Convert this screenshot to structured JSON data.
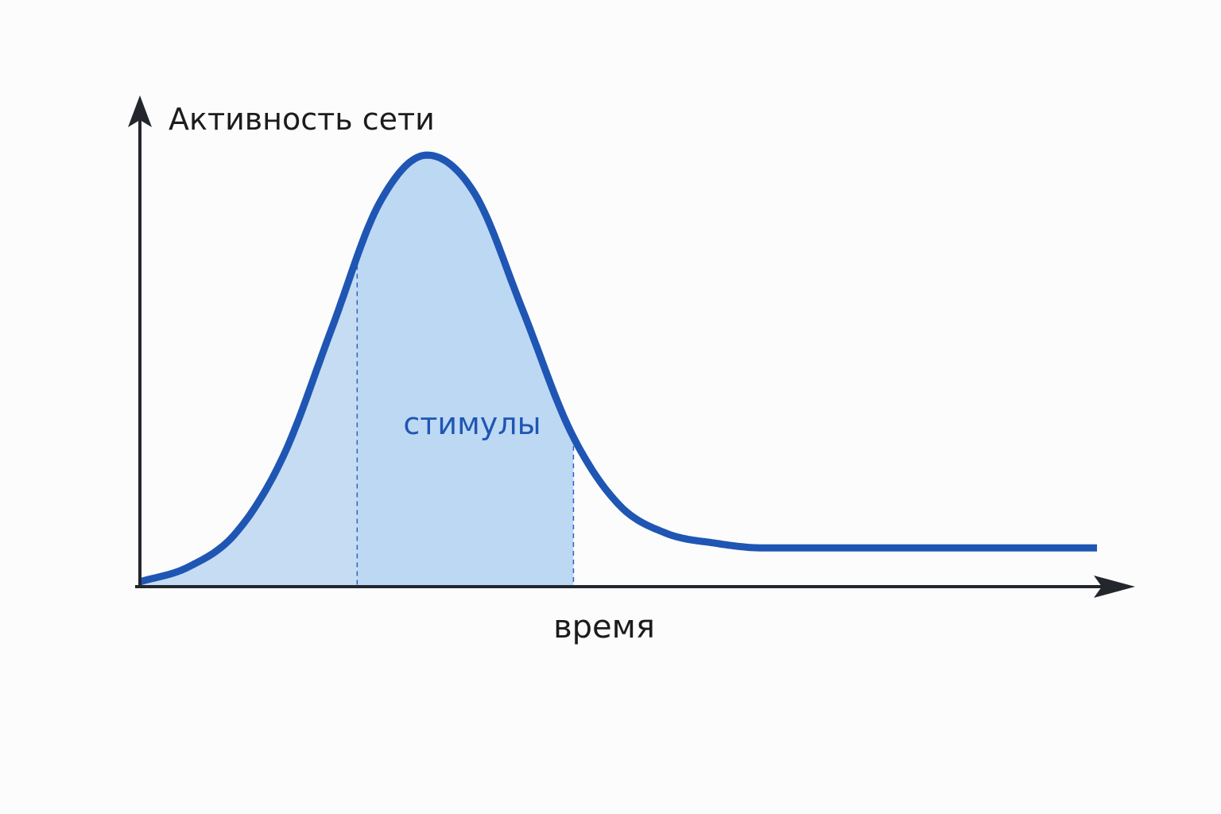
{
  "chart_data": {
    "type": "area",
    "title": "",
    "ylabel": "Активность сети",
    "xlabel": "время",
    "region_label": "стимулы",
    "grid": false,
    "legend": "none",
    "x_range": [
      0,
      100
    ],
    "y_range": [
      0,
      100
    ],
    "stimulus_interval": [
      22.7,
      45.3
    ],
    "series": [
      {
        "x": [
          0,
          5,
          10,
          15,
          20,
          25,
          30,
          35,
          40,
          45,
          50,
          55,
          60,
          65,
          70,
          75,
          80,
          85,
          90,
          95,
          100
        ],
        "values": [
          1,
          4,
          11,
          27,
          53,
          79,
          89,
          81,
          57,
          32,
          17,
          11,
          9,
          8,
          8,
          8,
          8,
          8,
          8,
          8,
          8
        ]
      }
    ],
    "colors": {
      "line": "#1f56b4",
      "fill": "#bdd8f3",
      "axis": "#23262d",
      "label": "#1f56b4"
    }
  }
}
